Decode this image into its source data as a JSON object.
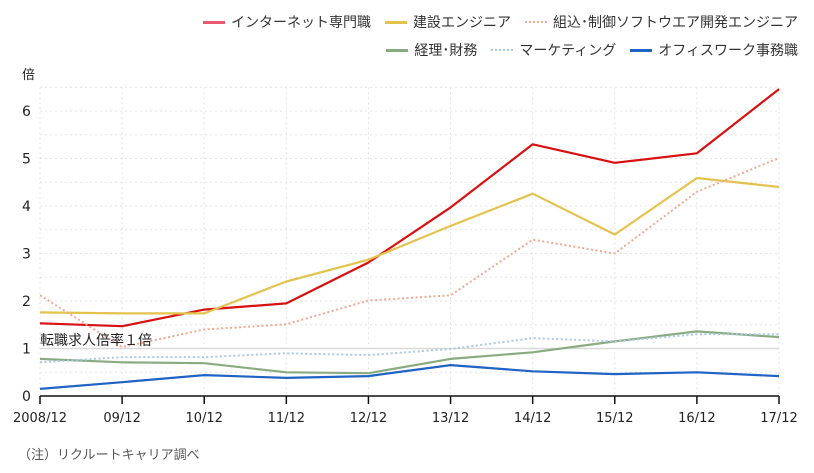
{
  "chart_data": {
    "type": "line",
    "title": "",
    "xlabel": "",
    "ylabel": "倍",
    "ylim": [
      0,
      6.5
    ],
    "yticks": [
      "0",
      "1",
      "2",
      "3",
      "4",
      "5",
      "6"
    ],
    "grid": true,
    "legend_position": "top-right",
    "categories": [
      "2008/12",
      "09/12",
      "10/12",
      "11/12",
      "12/12",
      "13/12",
      "14/12",
      "15/12",
      "16/12",
      "17/12"
    ],
    "series": [
      {
        "name": "インターネット専門職",
        "color": "#d81010",
        "style": "solid",
        "legend_color": "#e8586e",
        "values": [
          1.53,
          1.47,
          1.82,
          1.95,
          2.81,
          3.97,
          5.3,
          4.91,
          5.11,
          6.46
        ]
      },
      {
        "name": "建設エンジニア",
        "color": "#e3c24e",
        "style": "solid",
        "legend_color": "#e3c24e",
        "values": [
          1.76,
          1.74,
          1.74,
          2.41,
          2.87,
          3.58,
          4.26,
          3.4,
          4.59,
          4.4
        ]
      },
      {
        "name": "組込･制御ソフトウエア開発エンジニア",
        "color": "#f0a890",
        "style": "dotted",
        "legend_color": "#f0a890",
        "values": [
          2.12,
          1.03,
          1.4,
          1.51,
          2.01,
          2.12,
          3.29,
          3.0,
          4.3,
          5.01
        ]
      },
      {
        "name": "経理･財務",
        "color": "#8aab80",
        "style": "solid",
        "legend_color": "#8aab80",
        "values": [
          0.78,
          0.71,
          0.69,
          0.5,
          0.48,
          0.78,
          0.92,
          1.15,
          1.36,
          1.24
        ]
      },
      {
        "name": "マーケティング",
        "color": "#a8c8e6",
        "style": "dotted",
        "legend_color": "#a8c8e6",
        "values": [
          0.71,
          0.82,
          0.82,
          0.9,
          0.86,
          0.99,
          1.22,
          1.15,
          1.3,
          1.3
        ]
      },
      {
        "name": "オフィスワーク事務職",
        "color": "#1f63c4",
        "style": "solid",
        "legend_color": "#1f63c4",
        "values": [
          0.15,
          0.29,
          0.44,
          0.38,
          0.42,
          0.65,
          0.52,
          0.46,
          0.5,
          0.42
        ]
      }
    ],
    "reference_line": {
      "value": 1,
      "label": "転職求人倍率１倍",
      "color": "#d9d9d9"
    },
    "note": "（注）リクルートキャリア調べ"
  }
}
